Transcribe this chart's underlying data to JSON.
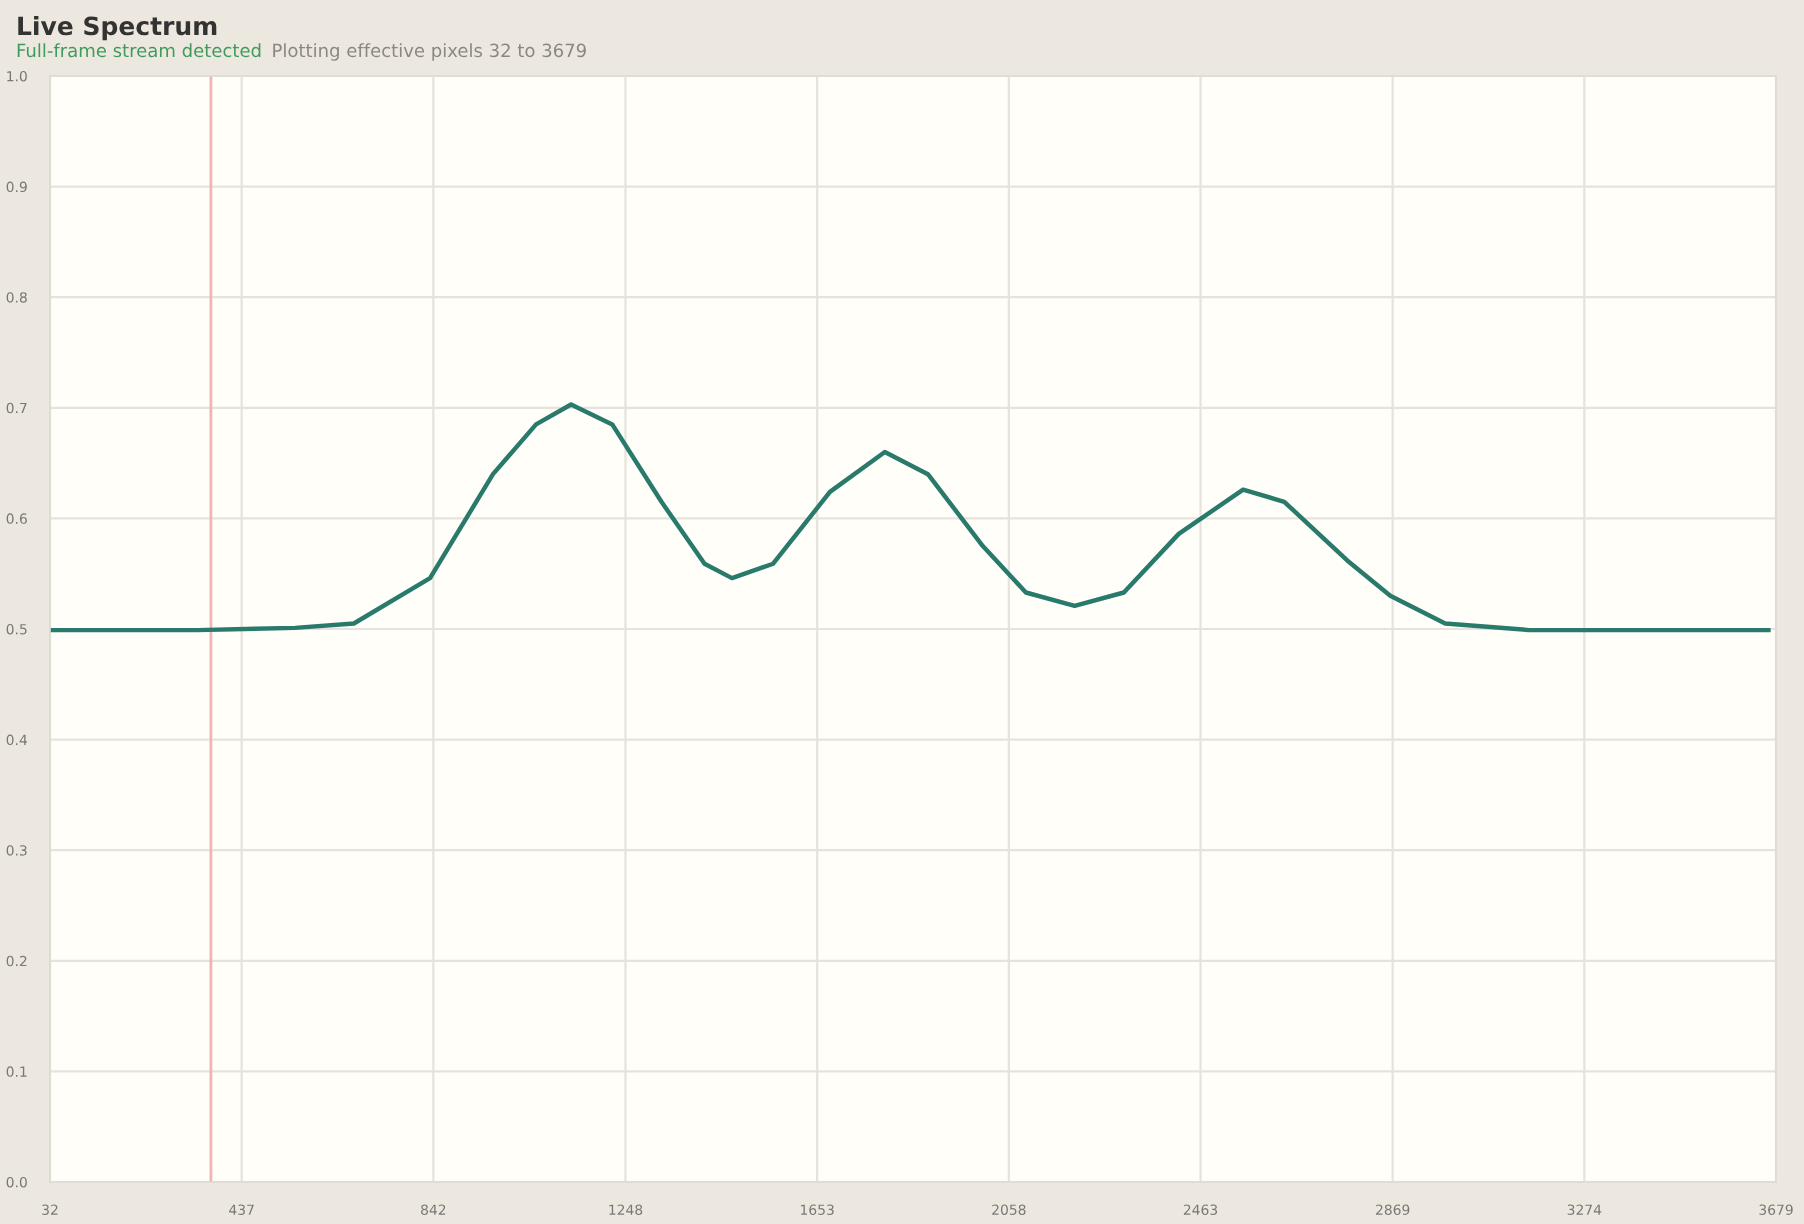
{
  "chart_data": {
    "type": "line",
    "title": "Live Spectrum",
    "subtitle": "Full-frame stream detected",
    "annotations": [
      "Plotting effective pixels 32 to 3679"
    ],
    "x": [
      32,
      343,
      550,
      674,
      835,
      968,
      1059,
      1133,
      1220,
      1324,
      1415,
      1473,
      1560,
      1680,
      1796,
      1887,
      2003,
      2094,
      2197,
      2301,
      2417,
      2553,
      2640,
      2773,
      2864,
      2980,
      3158,
      3663
    ],
    "series": [
      {
        "color": "#2a7a6c",
        "values": [
          0.499,
          0.499,
          0.501,
          0.505,
          0.546,
          0.64,
          0.685,
          0.703,
          0.685,
          0.615,
          0.559,
          0.546,
          0.559,
          0.624,
          0.66,
          0.64,
          0.575,
          0.533,
          0.521,
          0.533,
          0.586,
          0.626,
          0.615,
          0.562,
          0.53,
          0.505,
          0.499,
          0.499
        ]
      }
    ],
    "xlim": [
      32,
      3679
    ],
    "xticks": [
      32,
      437,
      842,
      1248,
      1653,
      2058,
      2463,
      2869,
      3274,
      3679
    ],
    "ylim": [
      0,
      1
    ],
    "yticks": [
      {
        "value": 0,
        "label": "0.0"
      },
      0.1,
      0.2,
      0.3,
      0.4,
      0.5,
      0.6,
      0.7,
      0.8,
      0.9,
      {
        "value": 1,
        "label": "1.0"
      }
    ],
    "ref_lines": [
      {
        "axis": "x",
        "value": 372,
        "color": "#f0b4b4"
      }
    ],
    "grid": true,
    "legend": false,
    "marker": "none",
    "line_style": "solid"
  }
}
